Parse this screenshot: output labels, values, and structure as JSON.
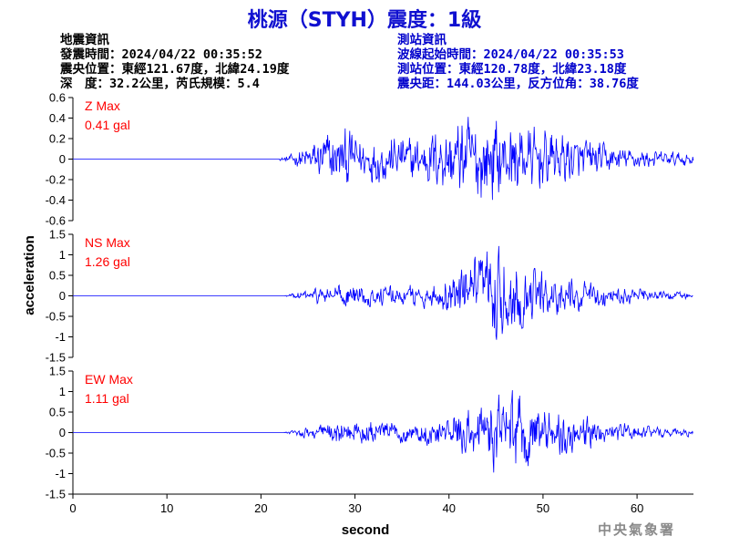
{
  "title": "桃源（STYH）震度：1級",
  "quake_info": {
    "header": "地震資訊",
    "origin_time": "發震時間：2024/04/22 00:35:52",
    "epicenter": "震央位置：東經121.67度，北緯24.19度",
    "depth_magnitude": "深　度：32.2公里，芮氏規模：5.4"
  },
  "station_info": {
    "header": "測站資訊",
    "wave_start": "波線起始時間：2024/04/22 00:35:53",
    "station_location": "測站位置：東經120.78度，北緯23.18度",
    "distance_azimuth": "震央距：144.03公里，反方位角：38.76度"
  },
  "credit": "中央氣象署",
  "colors": {
    "title": "#1010d0",
    "trace": "#0000ff",
    "max_label": "#ff0000",
    "station_info": "#0000cc"
  },
  "chart_data": {
    "type": "line",
    "xlabel": "second",
    "ylabel": "acceleration",
    "xlim": [
      0,
      66
    ],
    "xticks": [
      0,
      10,
      20,
      30,
      40,
      50,
      60
    ],
    "panels": [
      {
        "name": "Z",
        "max_label": "Z Max",
        "max_value": "0.41 gal",
        "ylim": [
          -0.6,
          0.6
        ],
        "yticks": [
          -0.6,
          -0.4,
          -0.2,
          0,
          0.2,
          0.4,
          0.6
        ],
        "ytick_labels": [
          "-0.6",
          "-0.4",
          "-0.2",
          "0",
          "0.2",
          "0.4",
          "0.6"
        ],
        "onset": 22,
        "envelope": [
          [
            22,
            0.01
          ],
          [
            23,
            0.03
          ],
          [
            25,
            0.12
          ],
          [
            27,
            0.24
          ],
          [
            29,
            0.24
          ],
          [
            31,
            0.18
          ],
          [
            33,
            0.2
          ],
          [
            35,
            0.19
          ],
          [
            37,
            0.2
          ],
          [
            39,
            0.28
          ],
          [
            41,
            0.33
          ],
          [
            43,
            0.36
          ],
          [
            45,
            0.34
          ],
          [
            47,
            0.3
          ],
          [
            49,
            0.26
          ],
          [
            52,
            0.22
          ],
          [
            55,
            0.16
          ],
          [
            58,
            0.1
          ],
          [
            62,
            0.07
          ],
          [
            66,
            0.05
          ]
        ]
      },
      {
        "name": "NS",
        "max_label": "NS Max",
        "max_value": "1.26 gal",
        "ylim": [
          -1.5,
          1.5
        ],
        "yticks": [
          -1.5,
          -1,
          -0.5,
          0,
          0.5,
          1,
          1.5
        ],
        "ytick_labels": [
          "-1.5",
          "-1",
          "-0.5",
          "0",
          "0.5",
          "1",
          "1.5"
        ],
        "onset": 22.5,
        "envelope": [
          [
            22.5,
            0.01
          ],
          [
            24,
            0.08
          ],
          [
            27,
            0.22
          ],
          [
            30,
            0.22
          ],
          [
            33,
            0.2
          ],
          [
            36,
            0.22
          ],
          [
            39,
            0.3
          ],
          [
            41,
            0.45
          ],
          [
            43,
            0.8
          ],
          [
            45,
            1.0
          ],
          [
            46,
            0.9
          ],
          [
            48,
            0.6
          ],
          [
            51,
            0.42
          ],
          [
            54,
            0.3
          ],
          [
            57,
            0.22
          ],
          [
            60,
            0.14
          ],
          [
            63,
            0.1
          ],
          [
            66,
            0.07
          ]
        ]
      },
      {
        "name": "EW",
        "max_label": "EW Max",
        "max_value": "1.11 gal",
        "ylim": [
          -1.5,
          1.5
        ],
        "yticks": [
          -1.5,
          -1,
          -0.5,
          0,
          0.5,
          1,
          1.5
        ],
        "ytick_labels": [
          "-1.5",
          "-1",
          "-0.5",
          "0",
          "0.5",
          "1",
          "1.5"
        ],
        "onset": 22.5,
        "envelope": [
          [
            22.5,
            0.01
          ],
          [
            24,
            0.08
          ],
          [
            27,
            0.2
          ],
          [
            30,
            0.27
          ],
          [
            33,
            0.22
          ],
          [
            36,
            0.2
          ],
          [
            39,
            0.3
          ],
          [
            41,
            0.42
          ],
          [
            43,
            0.62
          ],
          [
            45,
            0.8
          ],
          [
            46,
            0.9
          ],
          [
            48,
            0.7
          ],
          [
            51,
            0.5
          ],
          [
            54,
            0.35
          ],
          [
            57,
            0.24
          ],
          [
            60,
            0.15
          ],
          [
            63,
            0.1
          ],
          [
            66,
            0.08
          ]
        ]
      }
    ]
  }
}
